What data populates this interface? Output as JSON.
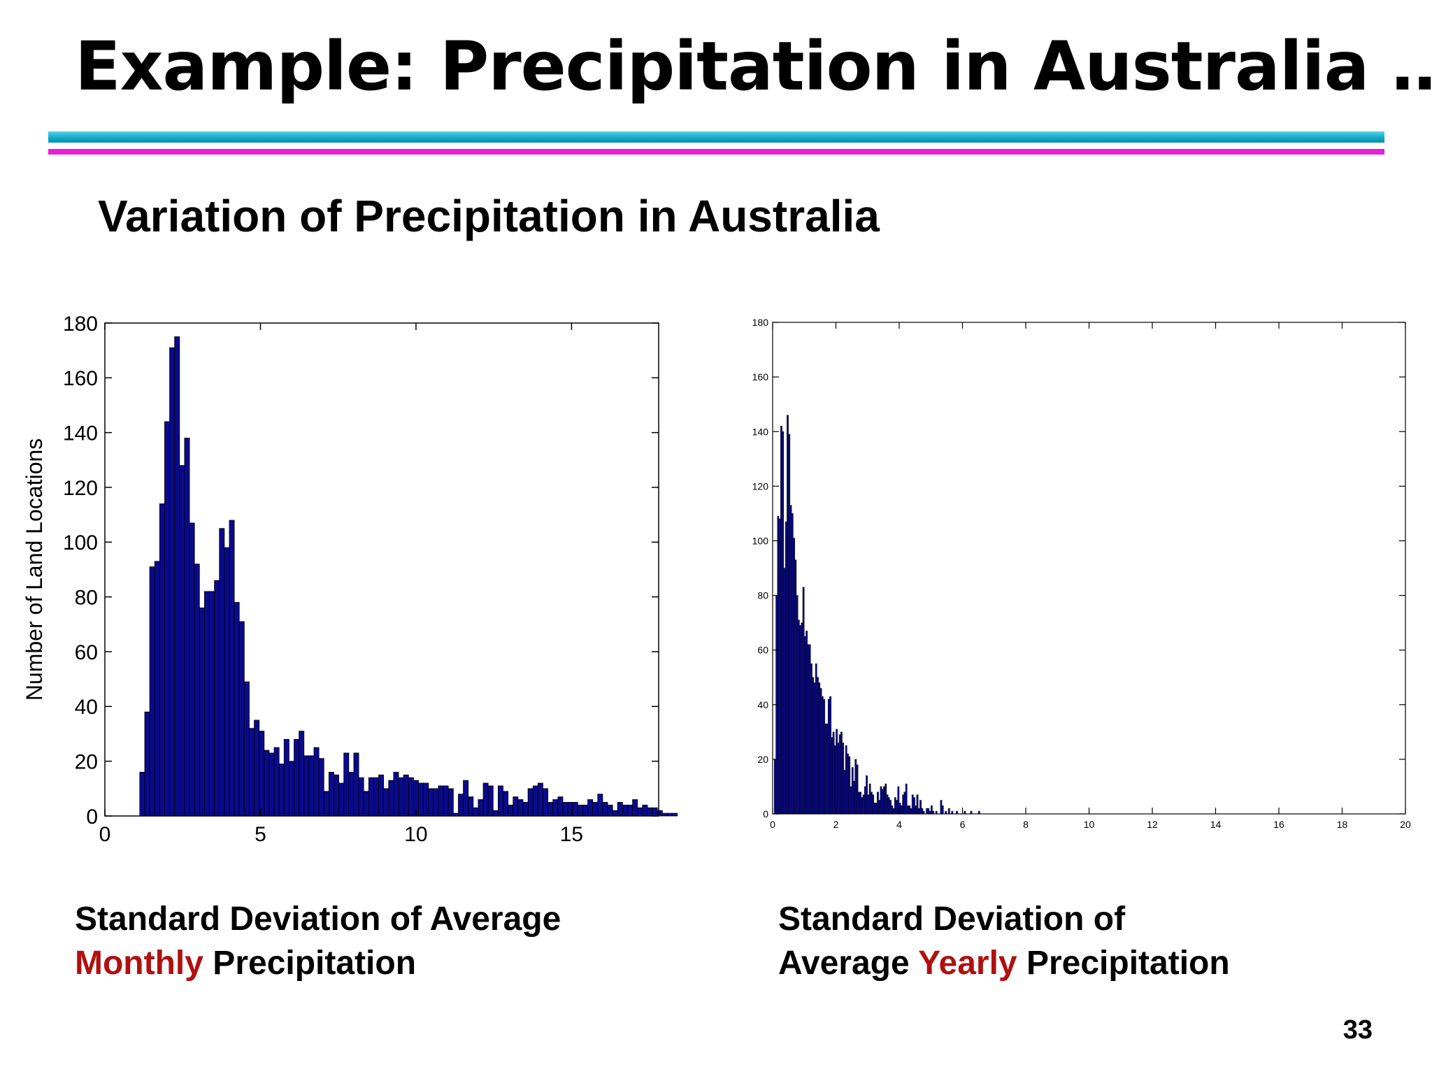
{
  "slide": {
    "title": "Example: Precipitation in Australia …",
    "subtitle": "Variation of Precipitation in Australia",
    "page_number": "33",
    "left_caption": {
      "line1": "Standard Deviation of Average",
      "highlight": "Monthly",
      "rest": " Precipitation"
    },
    "right_caption": {
      "line1": "Standard Deviation of",
      "pre": "Average ",
      "highlight": "Yearly",
      "rest": " Precipitation"
    },
    "colors": {
      "rule_cyan": "#1aaecd",
      "rule_magenta": "#e61fd8",
      "highlight": "#b01010",
      "bar_fill": "#0a0a8c"
    }
  },
  "chart_data": [
    {
      "type": "bar",
      "ylabel": "Number of Land Locations",
      "xlabel": "",
      "xlim": [
        0,
        17.8
      ],
      "ylim": [
        0,
        180
      ],
      "xticks": [
        0,
        5,
        10,
        15
      ],
      "yticks": [
        0,
        20,
        40,
        60,
        80,
        100,
        120,
        140,
        160,
        180
      ],
      "bin_width": 0.16,
      "bin_start": 1.12,
      "values": [
        16,
        38,
        91,
        93,
        114,
        144,
        171,
        175,
        128,
        138,
        107,
        92,
        76,
        82,
        82,
        86,
        105,
        98,
        108,
        78,
        71,
        49,
        32,
        35,
        31,
        24,
        23,
        25,
        19,
        28,
        20,
        28,
        31,
        22,
        22,
        25,
        21,
        9,
        16,
        15,
        12,
        23,
        16,
        23,
        14,
        9,
        14,
        14,
        15,
        10,
        13,
        16,
        14,
        15,
        14,
        13,
        12,
        12,
        10,
        10,
        11,
        11,
        10,
        1,
        8,
        13,
        7,
        3,
        6,
        12,
        11,
        2,
        11,
        9,
        4,
        7,
        6,
        5,
        10,
        11,
        12,
        10,
        5,
        6,
        7,
        5,
        5,
        5,
        4,
        4,
        6,
        5,
        8,
        5,
        4,
        2,
        5,
        4,
        4,
        6,
        3,
        4,
        3,
        3,
        2,
        1,
        1,
        1,
        0,
        0,
        0,
        0,
        1
      ]
    },
    {
      "type": "bar",
      "xlabel": "",
      "ylabel": "",
      "xlim": [
        0,
        20
      ],
      "ylim": [
        0,
        180
      ],
      "xticks": [
        0,
        2,
        4,
        6,
        8,
        10,
        12,
        14,
        16,
        18,
        20
      ],
      "yticks": [
        0,
        20,
        40,
        60,
        80,
        100,
        120,
        140,
        160,
        180
      ],
      "bin_width": 0.05,
      "bin_start": 0.05,
      "values": [
        20,
        80,
        109,
        108,
        142,
        140,
        90,
        107,
        146,
        139,
        113,
        110,
        101,
        93,
        80,
        71,
        69,
        70,
        83,
        65,
        67,
        62,
        62,
        55,
        50,
        48,
        55,
        50,
        48,
        46,
        43,
        42,
        33,
        33,
        42,
        43,
        28,
        30,
        25,
        31,
        26,
        29,
        30,
        26,
        16,
        25,
        22,
        21,
        10,
        17,
        12,
        20,
        18,
        8,
        8,
        6,
        7,
        10,
        14,
        7,
        11,
        8,
        7,
        4,
        4,
        8,
        5,
        10,
        9,
        10,
        11,
        7,
        6,
        5,
        3,
        2,
        6,
        5,
        10,
        4,
        3,
        7,
        8,
        11,
        3,
        3,
        2,
        7,
        6,
        3,
        7,
        2,
        5,
        2,
        1,
        0,
        2,
        2,
        1,
        3,
        1,
        0,
        1,
        0,
        0,
        5,
        3,
        0,
        1,
        0,
        2,
        0,
        1,
        0,
        0,
        1,
        0,
        0,
        0,
        0,
        1,
        0,
        0,
        0,
        1,
        0,
        0,
        0,
        0,
        1
      ]
    }
  ]
}
